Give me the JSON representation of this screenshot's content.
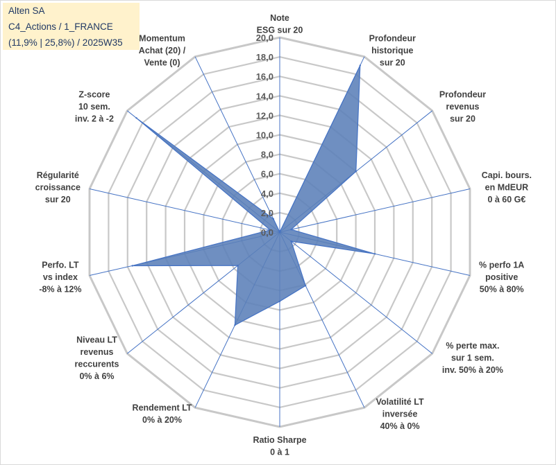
{
  "info": {
    "line1": "Alten SA",
    "line2": "C4_Actions / 1_FRANCE",
    "line3": "(11,9% | 25,8%) / 2025W35"
  },
  "chart_data": {
    "type": "radar",
    "rmin": 0,
    "rmax": 20,
    "tick_labels": [
      "0,0",
      "2,0",
      "4,0",
      "6,0",
      "8,0",
      "10,0",
      "12,0",
      "14,0",
      "16,0",
      "18,0",
      "20,0"
    ],
    "grid": true,
    "axes": [
      {
        "lines": [
          "Note",
          "ESG sur 20"
        ],
        "value": 0
      },
      {
        "lines": [
          "Profondeur",
          "historique",
          "sur 20"
        ],
        "value": 19
      },
      {
        "lines": [
          "Profondeur",
          "revenus",
          "sur 20"
        ],
        "value": 10
      },
      {
        "lines": [
          "Capi. bours.",
          "en MdEUR",
          "0 à 60 G€"
        ],
        "value": 1.2
      },
      {
        "lines": [
          "% perfo 1A",
          "positive",
          "50% à 80%"
        ],
        "value": 10
      },
      {
        "lines": [
          "% perte max.",
          "sur 1 sem.",
          "inv. 50% à 20%"
        ],
        "value": 1.5
      },
      {
        "lines": [
          "Volatilité LT",
          "inversée",
          "40% à 0%"
        ],
        "value": 6.1
      },
      {
        "lines": [
          "Ratio Sharpe",
          "0 à 1"
        ],
        "value": 7.1
      },
      {
        "lines": [
          "Rendement LT",
          "0% à 20%"
        ],
        "value": 10.6
      },
      {
        "lines": [
          "Niveau LT",
          "revenus",
          "reccurents",
          "0% à 6%"
        ],
        "value": 5.5
      },
      {
        "lines": [
          "Perfo. LT",
          "vs index",
          "-8% à 12%"
        ],
        "value": 15.5
      },
      {
        "lines": [
          "Régularité",
          "croissance",
          "sur 20"
        ],
        "value": 1
      },
      {
        "lines": [
          "Z-score",
          "10 sem.",
          "inv. 2 à -2"
        ],
        "value": 18.8
      },
      {
        "lines": [
          "Momentum",
          "Achat (20) /",
          "Vente (0)"
        ],
        "value": 1.5
      }
    ],
    "colors": {
      "fill": "#5b7fb8",
      "stroke": "#4472c4",
      "grid": "#c8c8c8",
      "spoke": "#4472c4"
    }
  }
}
